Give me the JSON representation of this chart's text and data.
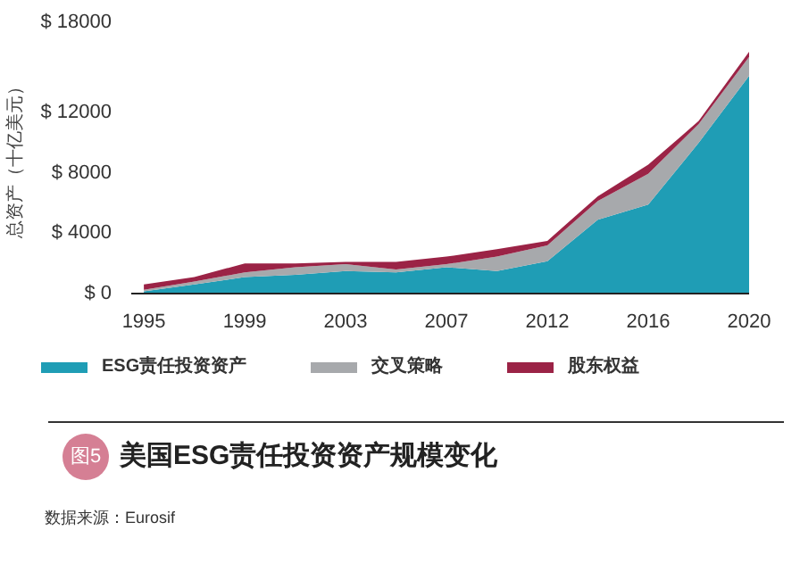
{
  "chart_data": {
    "type": "area",
    "stacked": true,
    "title": "美国ESG责任投资资产规模变化",
    "ylabel": "总资产（十亿美元）",
    "annotations": [
      "图5",
      "数据来源：Eurosif"
    ],
    "categories": [
      "1995",
      null,
      "1999",
      null,
      "2003",
      null,
      "2007",
      null,
      "2012",
      null,
      "2016",
      null,
      "2020"
    ],
    "ylim": [
      0,
      18000
    ],
    "yticks": [
      {
        "value": 0,
        "label": "$ 0"
      },
      {
        "value": 4000,
        "label": "$ 4000"
      },
      {
        "value": 8000,
        "label": "$ 8000"
      },
      {
        "value": 12000,
        "label": "$ 12000"
      },
      {
        "value": 18000,
        "label": "$ 18000"
      }
    ],
    "series": [
      {
        "name": "ESG责任投资资产",
        "color": "#1f9db5",
        "values": [
          150,
          600,
          1100,
          1250,
          1500,
          1400,
          1750,
          1500,
          2150,
          4900,
          5900,
          10000,
          14450
        ]
      },
      {
        "name": "交叉策略",
        "color": "#a7a9ac",
        "values": [
          100,
          200,
          300,
          500,
          450,
          200,
          200,
          950,
          1050,
          1250,
          2050,
          1250,
          1250
        ]
      },
      {
        "name": "股东权益",
        "color": "#9b2346",
        "values": [
          350,
          300,
          600,
          250,
          150,
          500,
          500,
          500,
          300,
          300,
          600,
          200,
          350
        ]
      }
    ],
    "grid": false,
    "legend": "bottom"
  }
}
